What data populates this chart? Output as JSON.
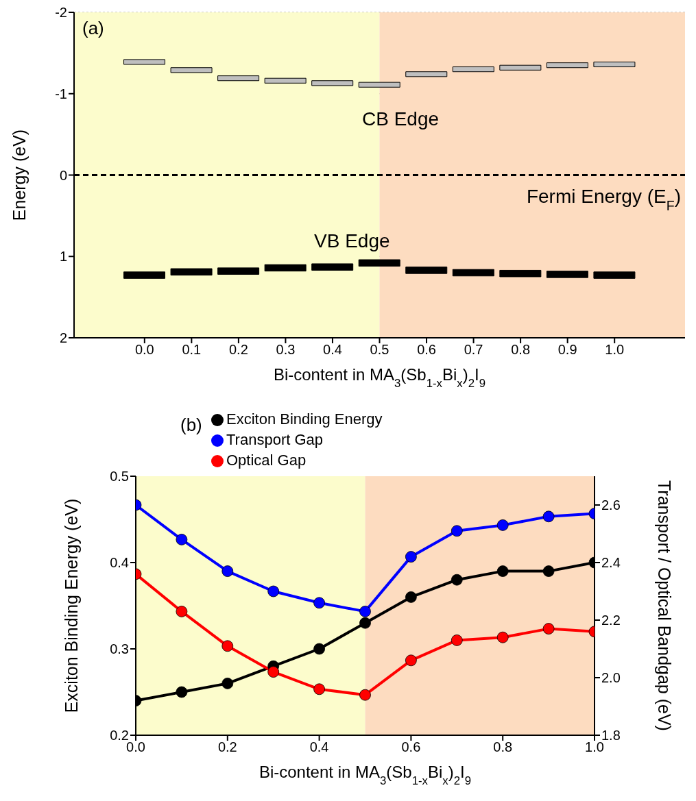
{
  "chart_data": [
    {
      "type": "bar",
      "x": [
        0,
        0.1,
        0.2,
        0.3,
        0.4,
        0.5,
        0.6,
        0.7,
        0.8,
        0.9,
        1.0
      ],
      "series": [
        {
          "color": "#bfbfbf",
          "base": [
            -1.42,
            -1.32,
            -1.22,
            -1.19,
            -1.16,
            -1.14,
            -1.27,
            -1.33,
            -1.35,
            -1.38,
            -1.39
          ],
          "values": [
            0.06,
            0.06,
            0.06,
            0.06,
            0.06,
            0.06,
            0.06,
            0.06,
            0.06,
            0.06,
            0.06
          ]
        },
        {
          "color": "#000000",
          "base": [
            1.19,
            1.15,
            1.14,
            1.1,
            1.09,
            1.04,
            1.13,
            1.16,
            1.17,
            1.18,
            1.19
          ],
          "values": [
            0.08,
            0.08,
            0.08,
            0.08,
            0.08,
            0.08,
            0.08,
            0.08,
            0.08,
            0.08,
            0.08
          ]
        }
      ],
      "xlabel": "Bi-content in MA$_{3}$(Sb$_{1-x}$Bi$_{x}$)$_{2}$I$_{9}$",
      "ylabel": "Energy (eV)",
      "xlim": [
        -0.15,
        1.15
      ],
      "xticks": [
        {
          "value": 0,
          "label": "0.0"
        },
        {
          "value": 0.1,
          "label": "0.1"
        },
        {
          "value": 0.2,
          "label": "0.2"
        },
        {
          "value": 0.3,
          "label": "0.3"
        },
        {
          "value": 0.4,
          "label": "0.4"
        },
        {
          "value": 0.5,
          "label": "0.5"
        },
        {
          "value": 0.6,
          "label": "0.6"
        },
        {
          "value": 0.7,
          "label": "0.7"
        },
        {
          "value": 0.8,
          "label": "0.8"
        },
        {
          "value": 0.9,
          "label": "0.9"
        },
        {
          "value": 1.0,
          "label": "1.0"
        }
      ],
      "ylim": [
        2,
        -2
      ],
      "yticks": [
        -2,
        -1,
        0,
        1,
        2
      ],
      "grid": "y",
      "bands": [
        {
          "axis": "x",
          "from": -0.15,
          "to": 0.5,
          "color": "#fcfccc"
        },
        {
          "axis": "x",
          "from": 0.5,
          "to": 1.15,
          "color": "#fddcc0"
        }
      ],
      "ref_lines": [
        {
          "axis": "y",
          "value": 0,
          "label": "Fermi Energy (E$_{F}$)",
          "color": "#000000",
          "line_style": "dashed"
        }
      ],
      "annotations": [
        "(a)",
        "CB Edge",
        "VB Edge"
      ]
    },
    {
      "type": "line",
      "x": [
        0,
        0.1,
        0.2,
        0.3,
        0.4,
        0.5,
        0.6,
        0.7,
        0.8,
        0.9,
        1.0
      ],
      "series": [
        {
          "name": "Exciton Binding Energy",
          "color": "#000000",
          "values": [
            0.24,
            0.25,
            0.26,
            0.28,
            0.3,
            0.33,
            0.36,
            0.38,
            0.39,
            0.39,
            0.4
          ]
        },
        {
          "name": "Transport Gap",
          "color": "#0000ff",
          "axis": "y2",
          "values": [
            2.6,
            2.48,
            2.37,
            2.3,
            2.26,
            2.23,
            2.42,
            2.51,
            2.53,
            2.56,
            2.57
          ]
        },
        {
          "name": "Optical Gap",
          "color": "#ff0000",
          "axis": "y2",
          "values": [
            2.36,
            2.23,
            2.11,
            2.02,
            1.96,
            1.94,
            2.06,
            2.13,
            2.14,
            2.17,
            2.16
          ]
        }
      ],
      "xlabel": "Bi-content in MA$_{3}$(Sb$_{1-x}$Bi$_{x}$)$_{2}$I$_{9}$",
      "ylabel": "Exciton Binding Energy (eV)",
      "y2label": "Transport / Optical Bandgap (eV)",
      "xlim": [
        0,
        1
      ],
      "xticks": [
        {
          "value": 0,
          "label": "0.0"
        },
        {
          "value": 0.2,
          "label": "0.2"
        },
        {
          "value": 0.4,
          "label": "0.4"
        },
        {
          "value": 0.6,
          "label": "0.6"
        },
        {
          "value": 0.8,
          "label": "0.8"
        },
        {
          "value": 1.0,
          "label": "1.0"
        }
      ],
      "ylim": [
        0.2,
        0.5
      ],
      "yticks": [
        {
          "value": 0.2,
          "label": "0.2"
        },
        {
          "value": 0.3,
          "label": "0.3"
        },
        {
          "value": 0.4,
          "label": "0.4"
        },
        {
          "value": 0.5,
          "label": "0.5"
        }
      ],
      "y2lim": [
        1.8,
        2.7
      ],
      "y2ticks": [
        {
          "value": 1.8,
          "label": "1.8"
        },
        {
          "value": 2.0,
          "label": "2.0"
        },
        {
          "value": 2.2,
          "label": "2.2"
        },
        {
          "value": 2.4,
          "label": "2.4"
        },
        {
          "value": 2.6,
          "label": "2.6"
        }
      ],
      "bands": [
        {
          "axis": "x",
          "from": 0,
          "to": 0.5,
          "color": "#fcfccc"
        },
        {
          "axis": "x",
          "from": 0.5,
          "to": 1,
          "color": "#fddcc0"
        }
      ],
      "marker": "circle",
      "legend": "top",
      "annotations": [
        "(b)"
      ]
    }
  ]
}
